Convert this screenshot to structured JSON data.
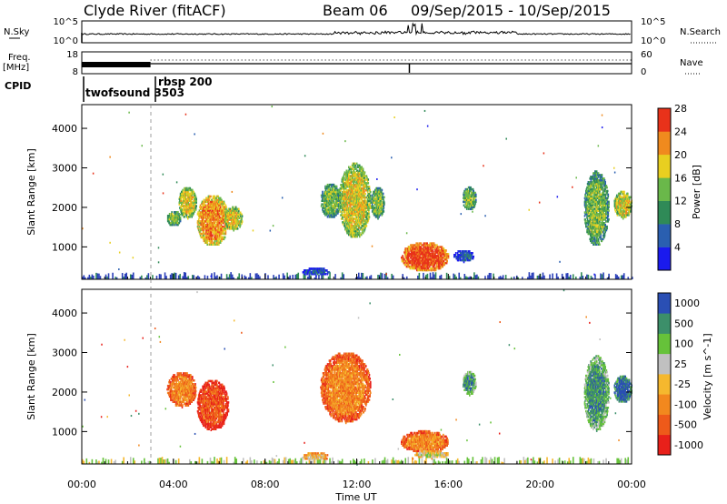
{
  "header": {
    "station": "Clyde River (fitACF)",
    "beam": "Beam 06",
    "date_range": "09/Sep/2015 - 10/Sep/2015"
  },
  "nsky_panel": {
    "left_label": "N.Sky",
    "left_ticks": [
      "10^5",
      "10^0"
    ],
    "right_label": "N.Search",
    "right_ticks": [
      "10^5",
      "10^0"
    ]
  },
  "freq_panel": {
    "left_label_line1": "Freq.",
    "left_label_line2": "[MHz]",
    "left_ticks": [
      "18",
      "8"
    ],
    "right_label": "Nave",
    "right_ticks": [
      "60",
      "0"
    ]
  },
  "cpid": {
    "label": "CPID",
    "mode1": "twofsound 3503",
    "mode2": "rbsp 200",
    "mode_change_hour": 3.0
  },
  "time_axis": {
    "label": "Time UT",
    "ticks": [
      "00:00",
      "04:00",
      "08:00",
      "12:00",
      "16:00",
      "20:00",
      "00:00"
    ]
  },
  "chart_data": [
    {
      "type": "heatmap",
      "title": "Power",
      "ylabel": "Slant Range [km]",
      "xlabel": "",
      "xlim": [
        0,
        24
      ],
      "ylim": [
        180,
        4600
      ],
      "yticks": [
        1000,
        2000,
        3000,
        4000
      ],
      "colorbar": {
        "label": "Power [dB]",
        "ticks": [
          "4",
          "8",
          "12",
          "16",
          "20",
          "24",
          "28"
        ],
        "colors": [
          "#1a1aee",
          "#2a5fb0",
          "#2f8a57",
          "#6ab84a",
          "#e8cf20",
          "#f08a1e",
          "#e8321a"
        ]
      },
      "regions": [
        {
          "t0": 3.7,
          "t1": 4.3,
          "r0": 1500,
          "r1": 1900,
          "level": 3
        },
        {
          "t0": 4.2,
          "t1": 5.0,
          "r0": 1700,
          "r1": 2500,
          "level": 4
        },
        {
          "t0": 5.0,
          "t1": 6.4,
          "r0": 1000,
          "r1": 2300,
          "level": 5
        },
        {
          "t0": 6.2,
          "t1": 7.0,
          "r0": 1400,
          "r1": 2000,
          "level": 4
        },
        {
          "t0": 9.6,
          "t1": 10.8,
          "r0": 250,
          "r1": 450,
          "level": 1
        },
        {
          "t0": 10.4,
          "t1": 11.3,
          "r0": 1700,
          "r1": 2600,
          "level": 3
        },
        {
          "t0": 11.2,
          "t1": 12.6,
          "r0": 1200,
          "r1": 3100,
          "level": 4
        },
        {
          "t0": 12.6,
          "t1": 13.2,
          "r0": 1700,
          "r1": 2500,
          "level": 3
        },
        {
          "t0": 13.9,
          "t1": 16.0,
          "r0": 350,
          "r1": 1100,
          "level": 6
        },
        {
          "t0": 16.2,
          "t1": 17.1,
          "r0": 600,
          "r1": 900,
          "level": 1
        },
        {
          "t0": 16.6,
          "t1": 17.2,
          "r0": 1900,
          "r1": 2500,
          "level": 3
        },
        {
          "t0": 21.9,
          "t1": 23.0,
          "r0": 1000,
          "r1": 2900,
          "level": 3
        },
        {
          "t0": 23.2,
          "t1": 24.0,
          "r0": 1700,
          "r1": 2400,
          "level": 4
        }
      ]
    },
    {
      "type": "heatmap",
      "title": "Velocity",
      "ylabel": "Slant Range [km]",
      "xlabel": "Time UT",
      "xlim": [
        0,
        24
      ],
      "ylim": [
        180,
        4600
      ],
      "yticks": [
        1000,
        2000,
        3000,
        4000
      ],
      "colorbar": {
        "label": "Velocity [m s^-1]",
        "ticks": [
          "-1000",
          "-500",
          "-100",
          "-25",
          "25",
          "100",
          "500",
          "1000"
        ],
        "colors": [
          "#e8201a",
          "#ee5a1a",
          "#f2881e",
          "#f5b82e",
          "#c0c0c0",
          "#66c23a",
          "#3c8f6a",
          "#2a4fb4"
        ]
      },
      "regions": [
        {
          "t0": 3.7,
          "t1": 5.0,
          "r0": 1600,
          "r1": 2500,
          "level": 2
        },
        {
          "t0": 5.0,
          "t1": 6.4,
          "r0": 1000,
          "r1": 2300,
          "level": 1
        },
        {
          "t0": 9.6,
          "t1": 10.8,
          "r0": 250,
          "r1": 450,
          "level": 3
        },
        {
          "t0": 10.4,
          "t1": 12.6,
          "r0": 1200,
          "r1": 3000,
          "level": 2
        },
        {
          "t0": 13.9,
          "t1": 16.0,
          "r0": 450,
          "r1": 1000,
          "level": 2
        },
        {
          "t0": 14.5,
          "t1": 16.0,
          "r0": 300,
          "r1": 500,
          "level": 4
        },
        {
          "t0": 16.6,
          "t1": 17.2,
          "r0": 1900,
          "r1": 2500,
          "level": 6
        },
        {
          "t0": 21.9,
          "t1": 23.0,
          "r0": 1000,
          "r1": 2900,
          "level": 6
        },
        {
          "t0": 23.2,
          "t1": 24.0,
          "r0": 1700,
          "r1": 2400,
          "level": 7
        }
      ]
    }
  ]
}
